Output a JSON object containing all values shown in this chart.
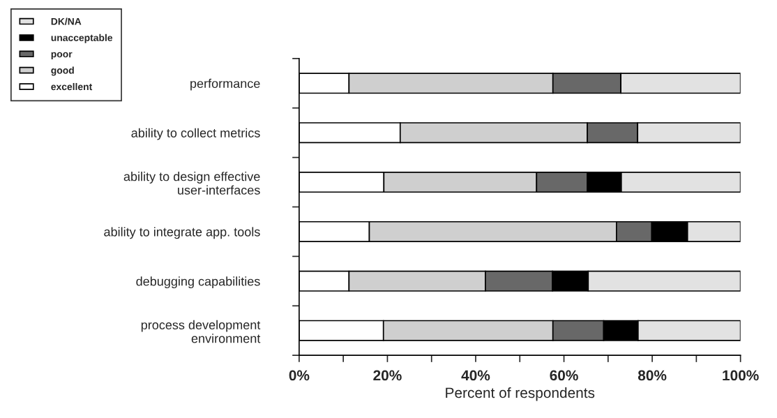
{
  "chart_data": {
    "type": "bar",
    "orientation": "horizontal",
    "stacked": true,
    "xlabel": "Percent of respondents",
    "categories": [
      "performance",
      "ability to collect metrics",
      "ability to design effective\nuser-interfaces",
      "ability to integrate app. tools",
      "debugging capabilities",
      "process development\nenvironment"
    ],
    "series": [
      {
        "name": "excellent",
        "color": "#ffffff",
        "values": [
          11.3,
          22.9,
          19.2,
          15.9,
          11.3,
          19.1
        ]
      },
      {
        "name": "good",
        "color": "#cfcfcf",
        "values": [
          46.2,
          42.4,
          34.6,
          56.0,
          30.9,
          38.4
        ]
      },
      {
        "name": "poor",
        "color": "#686868",
        "values": [
          15.4,
          11.4,
          11.5,
          8.0,
          15.2,
          11.5
        ]
      },
      {
        "name": "unacceptable",
        "color": "#000000",
        "values": [
          0,
          0,
          7.7,
          8.1,
          8.1,
          7.8
        ]
      },
      {
        "name": "DK/NA",
        "color": "#e2e2e2",
        "values": [
          27.1,
          23.3,
          27.0,
          12.0,
          34.5,
          23.2
        ]
      }
    ],
    "xlim": [
      0,
      100
    ],
    "xticks": [
      {
        "value": 0,
        "label": "0%"
      },
      {
        "value": 10,
        "label": null
      },
      {
        "value": 20,
        "label": "20%"
      },
      {
        "value": 30,
        "label": null
      },
      {
        "value": 40,
        "label": "40%"
      },
      {
        "value": 50,
        "label": null
      },
      {
        "value": 60,
        "label": "60%"
      },
      {
        "value": 70,
        "label": null
      },
      {
        "value": 80,
        "label": "80%"
      },
      {
        "value": 90,
        "label": null
      },
      {
        "value": 100,
        "label": "100%"
      }
    ],
    "legend": "top left",
    "grid": false
  }
}
